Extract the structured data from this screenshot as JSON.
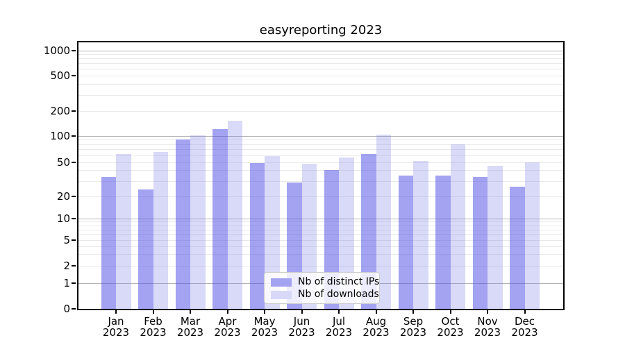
{
  "chart_data": {
    "type": "bar",
    "title": "easyreporting 2023",
    "categories": [
      "Jan",
      "Feb",
      "Mar",
      "Apr",
      "May",
      "Jun",
      "Jul",
      "Aug",
      "Sep",
      "Oct",
      "Nov",
      "Dec"
    ],
    "x_tick_second_line": "2023",
    "series": [
      {
        "name": "Nb of distinct IPs",
        "color": "#a3a3f2",
        "bar_rgba": "rgba(71,71,229,0.5)",
        "values": [
          34,
          24,
          91,
          122,
          49,
          29,
          41,
          62,
          35,
          35,
          34,
          26
        ]
      },
      {
        "name": "Nb of downloads",
        "color": "#d8d8f8",
        "bar_rgba": "rgba(119,119,230,0.28)",
        "values": [
          62,
          66,
          103,
          152,
          59,
          48,
          57,
          105,
          52,
          80,
          46,
          50
        ]
      }
    ],
    "yscale": "symlog",
    "y_ticks": [
      0,
      1,
      2,
      5,
      10,
      20,
      50,
      100,
      200,
      500,
      1000
    ],
    "ylim": [
      0,
      1300
    ],
    "grid": true,
    "legend_position": "lower center",
    "axis_colors": {
      "major_grid": "#b4b4b4",
      "minor_grid": "#e9e9e9",
      "spine": "#000000",
      "text": "#000000"
    }
  }
}
